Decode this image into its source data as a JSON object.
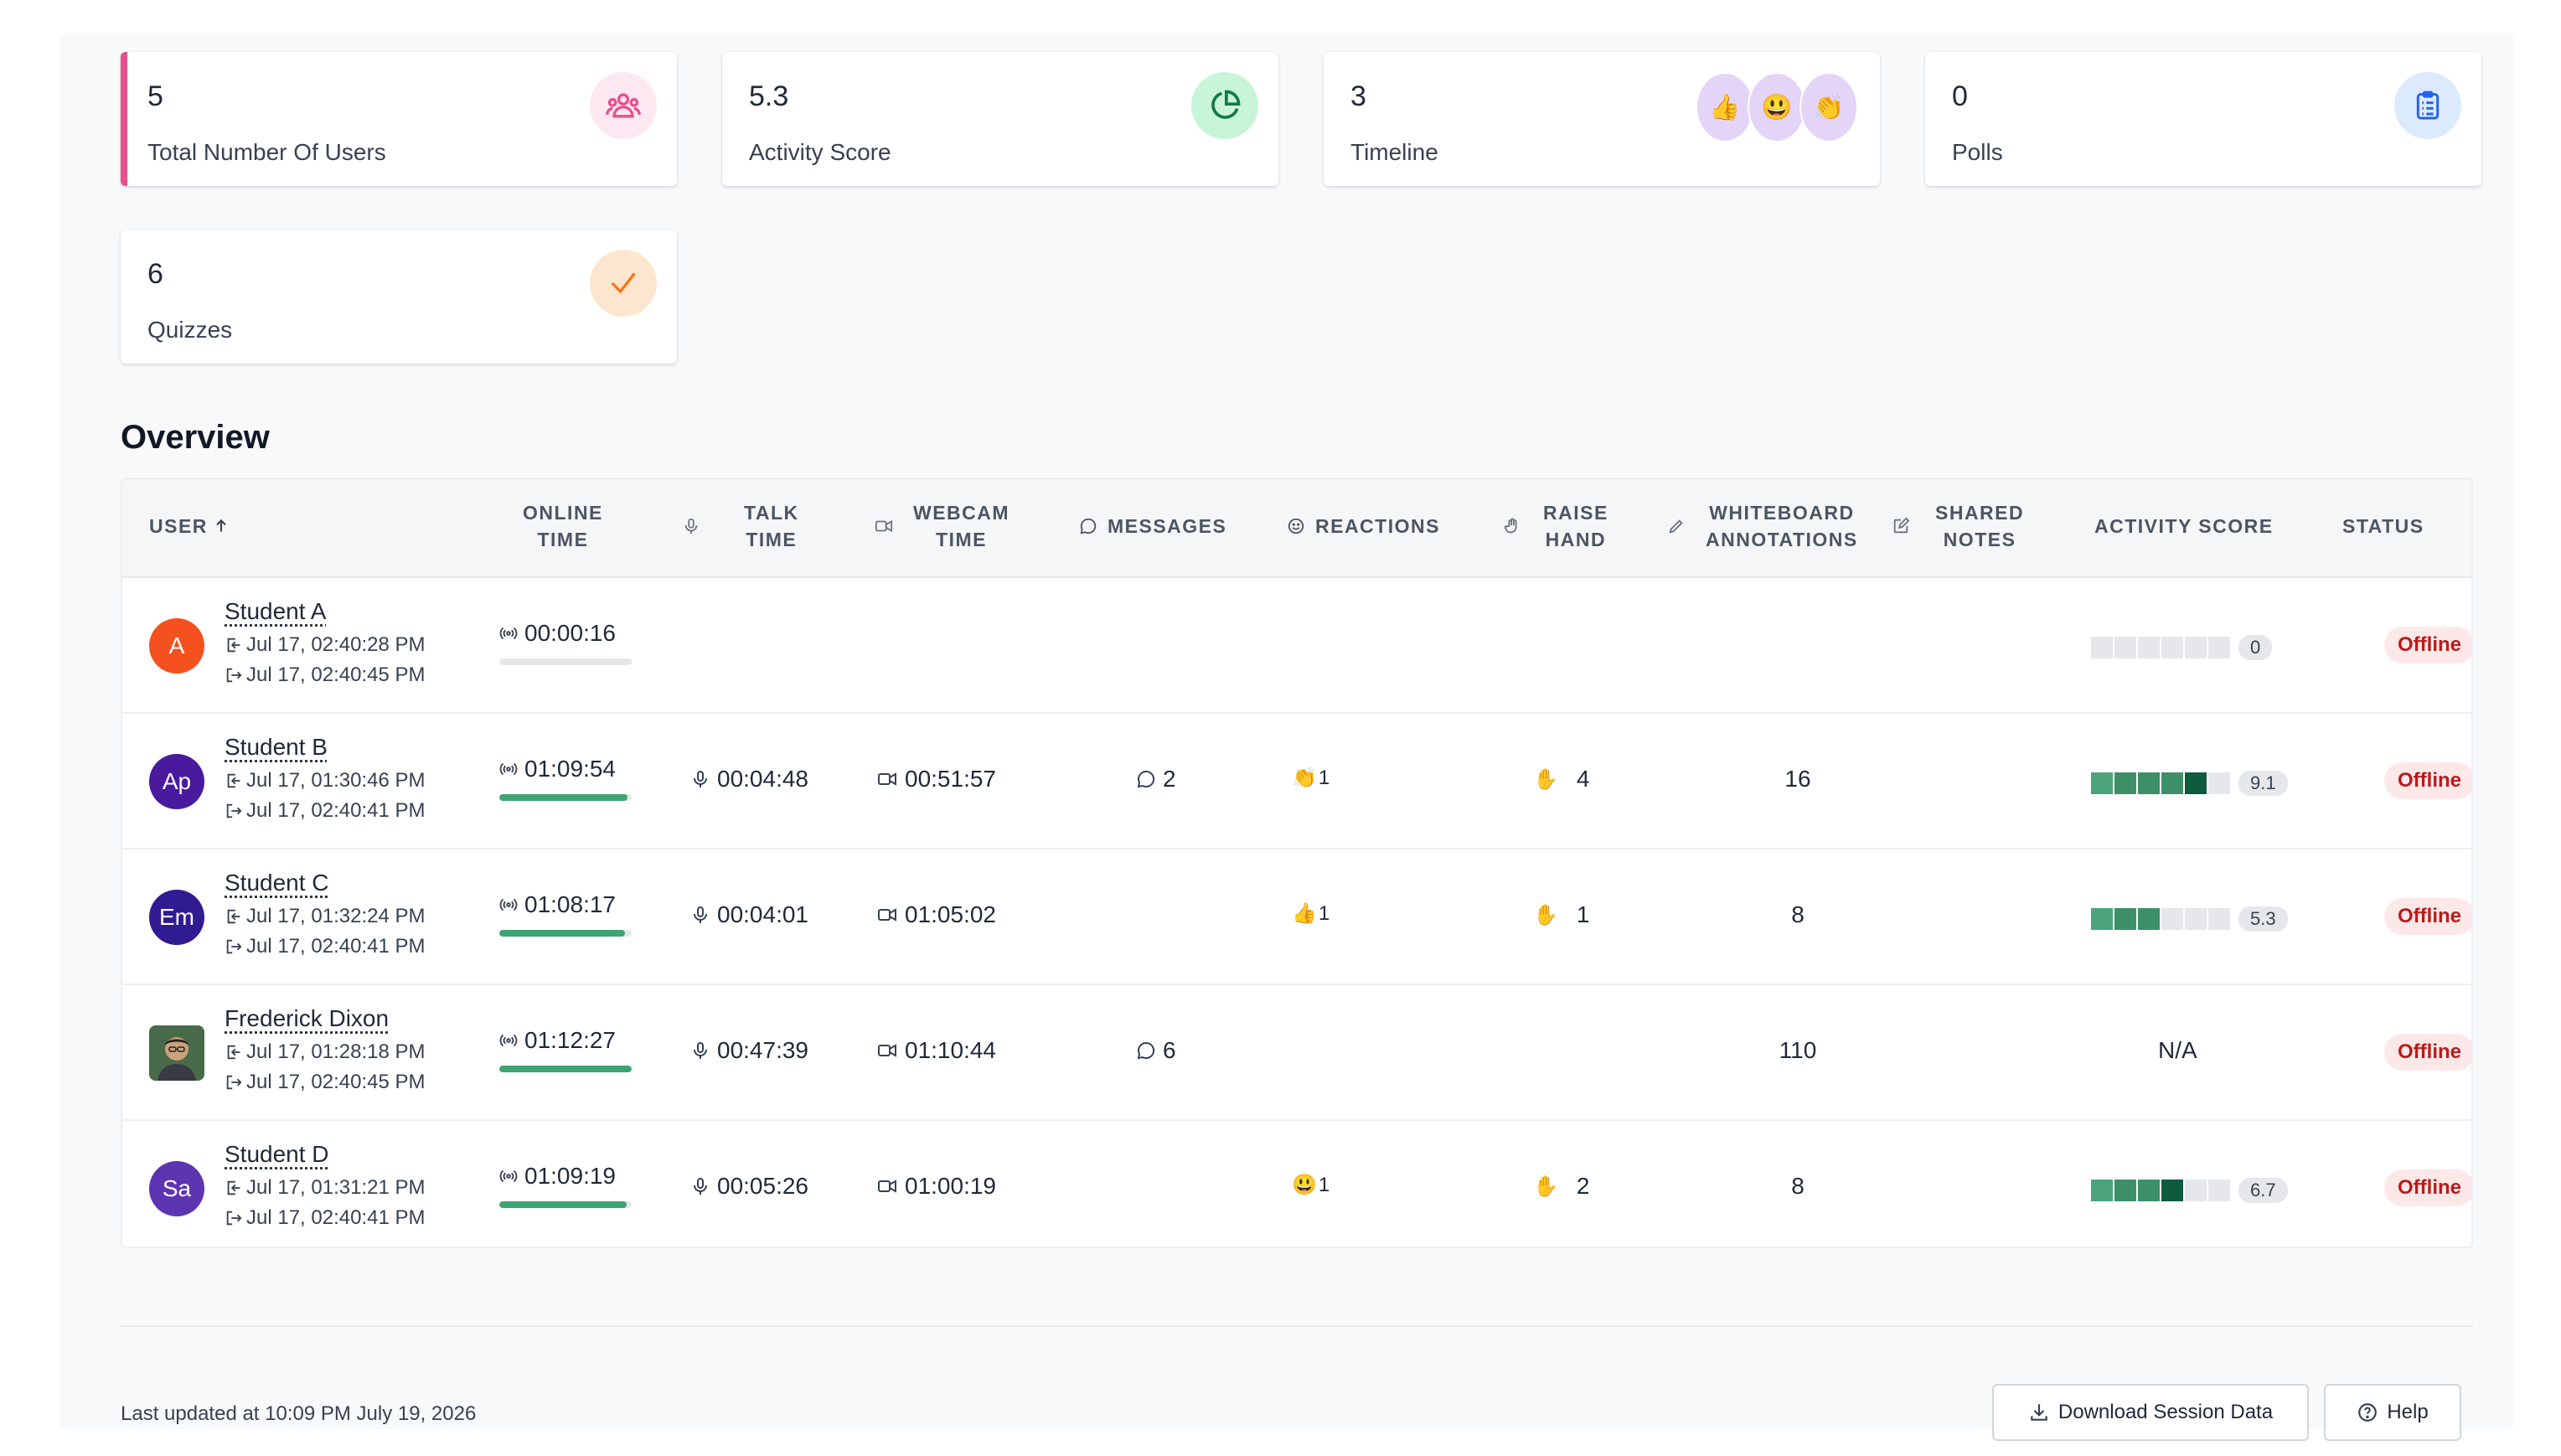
{
  "stats": [
    {
      "value": "5",
      "label": "Total Number Of Users",
      "icon": "users-icon",
      "accent": "#e6508e"
    },
    {
      "value": "5.3",
      "label": "Activity Score",
      "icon": "pie-chart-icon"
    },
    {
      "value": "3",
      "label": "Timeline",
      "emojis": [
        "👍",
        "😃",
        "👏"
      ]
    },
    {
      "value": "0",
      "label": "Polls",
      "icon": "clipboard-icon"
    },
    {
      "value": "6",
      "label": "Quizzes",
      "icon": "check-icon"
    }
  ],
  "overview": {
    "title": "Overview",
    "columns": {
      "user": "USER",
      "online_time": [
        "ONLINE",
        "TIME"
      ],
      "talk_time": [
        "TALK",
        "TIME"
      ],
      "webcam_time": [
        "WEBCAM",
        "TIME"
      ],
      "messages": "MESSAGES",
      "reactions": "REACTIONS",
      "raise_hand": [
        "RAISE",
        "HAND"
      ],
      "whiteboard": [
        "WHITEBOARD",
        "ANNOTATIONS"
      ],
      "shared_notes": [
        "SHARED",
        "NOTES"
      ],
      "activity_score": "ACTIVITY SCORE",
      "status": "STATUS"
    },
    "rows": [
      {
        "name": "Student A",
        "avatar": "A",
        "avatar_color": "#f4511e",
        "login": "Jul 17, 02:40:28 PM",
        "logout": "Jul 17, 02:40:45 PM",
        "online": "00:00:16",
        "online_fraction": 0.0,
        "talk": "",
        "webcam": "",
        "messages": "",
        "reaction_emoji": "",
        "reaction_count": "",
        "raise_hand": "",
        "whiteboard": "",
        "score_bars": 0,
        "score": "0",
        "status": "Offline"
      },
      {
        "name": "Student B",
        "avatar": "Ap",
        "avatar_color": "#4a1a9e",
        "login": "Jul 17, 01:30:46 PM",
        "logout": "Jul 17, 02:40:41 PM",
        "online": "01:09:54",
        "online_fraction": 0.97,
        "talk": "00:04:48",
        "webcam": "00:51:57",
        "messages": "2",
        "reaction_emoji": "👏",
        "reaction_count": "1",
        "raise_hand": "4",
        "whiteboard": "16",
        "score_bars": 5,
        "score": "9.1",
        "status": "Offline"
      },
      {
        "name": "Student C",
        "avatar": "Em",
        "avatar_color": "#311b92",
        "login": "Jul 17, 01:32:24 PM",
        "logout": "Jul 17, 02:40:41 PM",
        "online": "01:08:17",
        "online_fraction": 0.95,
        "talk": "00:04:01",
        "webcam": "01:05:02",
        "messages": "",
        "reaction_emoji": "👍",
        "reaction_count": "1",
        "raise_hand": "1",
        "whiteboard": "8",
        "score_bars": 3,
        "score": "5.3",
        "status": "Offline"
      },
      {
        "name": "Frederick Dixon",
        "avatar": "",
        "avatar_color": "#5b4a3a",
        "login": "Jul 17, 01:28:18 PM",
        "logout": "Jul 17, 02:40:45 PM",
        "online": "01:12:27",
        "online_fraction": 1.0,
        "talk": "00:47:39",
        "webcam": "01:10:44",
        "messages": "6",
        "reaction_emoji": "",
        "reaction_count": "",
        "raise_hand": "",
        "whiteboard": "110",
        "score_na": "N/A",
        "score": "",
        "status": "Offline"
      },
      {
        "name": "Student D",
        "avatar": "Sa",
        "avatar_color": "#5e35b1",
        "login": "Jul 17, 01:31:21 PM",
        "logout": "Jul 17, 02:40:41 PM",
        "online": "01:09:19",
        "online_fraction": 0.96,
        "talk": "00:05:26",
        "webcam": "01:00:19",
        "messages": "",
        "reaction_emoji": "😃",
        "reaction_count": "1",
        "raise_hand": "2",
        "whiteboard": "8",
        "score_bars": 4,
        "score": "6.7",
        "status": "Offline"
      }
    ]
  },
  "footer": {
    "updated": "Last updated at 10:09 PM July 19, 2026",
    "download": "Download Session Data",
    "help": "Help"
  },
  "colors": {
    "score_green": "#3d8f68",
    "score_dark": "#0f5b3e",
    "status_bg": "#fde8e8",
    "status_text": "#b91c1c"
  }
}
